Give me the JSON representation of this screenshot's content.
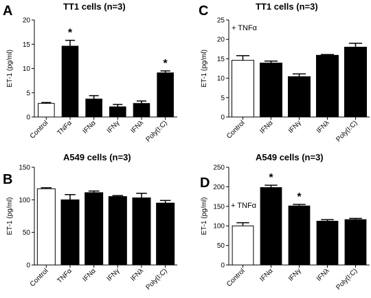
{
  "chart_data": [
    {
      "type": "bar",
      "panel": "A",
      "title": "TT1 cells (n=3)",
      "ylabel": "ET-1 (pg/ml)",
      "annotation": "",
      "categories": [
        "Control",
        "TNFα",
        "IFNα",
        "IFNγ",
        "IFNλ",
        "Poly(I:C)"
      ],
      "values": [
        2.8,
        14.6,
        3.7,
        2.1,
        2.8,
        9.1
      ],
      "errors": [
        0.2,
        1.2,
        0.7,
        0.5,
        0.5,
        0.4
      ],
      "fills": [
        "white",
        "black",
        "black",
        "black",
        "black",
        "black"
      ],
      "significant": [
        false,
        true,
        false,
        false,
        false,
        true
      ],
      "significance_marker": "*",
      "ylim": [
        0,
        20
      ],
      "yticks": [
        0,
        5,
        10,
        15,
        20
      ]
    },
    {
      "type": "bar",
      "panel": "C",
      "title": "TT1 cells (n=3)",
      "ylabel": "ET-1 (pg/ml)",
      "annotation": "+ TNFα",
      "categories": [
        "Control",
        "IFNα",
        "IFNγ",
        "IFNλ",
        "Poly(I:C)"
      ],
      "values": [
        14.6,
        13.9,
        10.4,
        15.9,
        18.0
      ],
      "errors": [
        1.2,
        0.5,
        0.7,
        0.2,
        1.0
      ],
      "fills": [
        "white",
        "black",
        "black",
        "black",
        "black"
      ],
      "significant": [
        false,
        false,
        false,
        false,
        false
      ],
      "significance_marker": "*",
      "ylim": [
        0,
        25
      ],
      "yticks": [
        0,
        5,
        10,
        15,
        20,
        25
      ]
    },
    {
      "type": "bar",
      "panel": "B",
      "title": "A549 cells (n=3)",
      "ylabel": "ET-1 (pg/ml)",
      "annotation": "",
      "categories": [
        "Control",
        "TNFα",
        "IFNα",
        "IFNγ",
        "IFNλ",
        "Poly(I:C)"
      ],
      "values": [
        117,
        100,
        111,
        105,
        103,
        95
      ],
      "errors": [
        1.5,
        8,
        2.5,
        1.5,
        7,
        4
      ],
      "fills": [
        "white",
        "black",
        "black",
        "black",
        "black",
        "black"
      ],
      "significant": [
        false,
        false,
        false,
        false,
        false,
        false
      ],
      "significance_marker": "*",
      "ylim": [
        0,
        150
      ],
      "yticks": [
        0,
        50,
        100,
        150
      ]
    },
    {
      "type": "bar",
      "panel": "D",
      "title": "A549 cells (n=3)",
      "ylabel": "ET-1 (pg/ml)",
      "annotation": "+ TNFα",
      "categories": [
        "Control",
        "IFNα",
        "IFNγ",
        "IFNλ",
        "Poly(I:C)"
      ],
      "values": [
        100,
        198,
        151,
        112,
        116
      ],
      "errors": [
        8,
        6,
        4,
        4,
        3
      ],
      "fills": [
        "white",
        "black",
        "black",
        "black",
        "black"
      ],
      "significant": [
        false,
        true,
        true,
        false,
        false
      ],
      "significance_marker": "*",
      "ylim": [
        0,
        250
      ],
      "yticks": [
        0,
        50,
        100,
        150,
        200,
        250
      ]
    }
  ]
}
